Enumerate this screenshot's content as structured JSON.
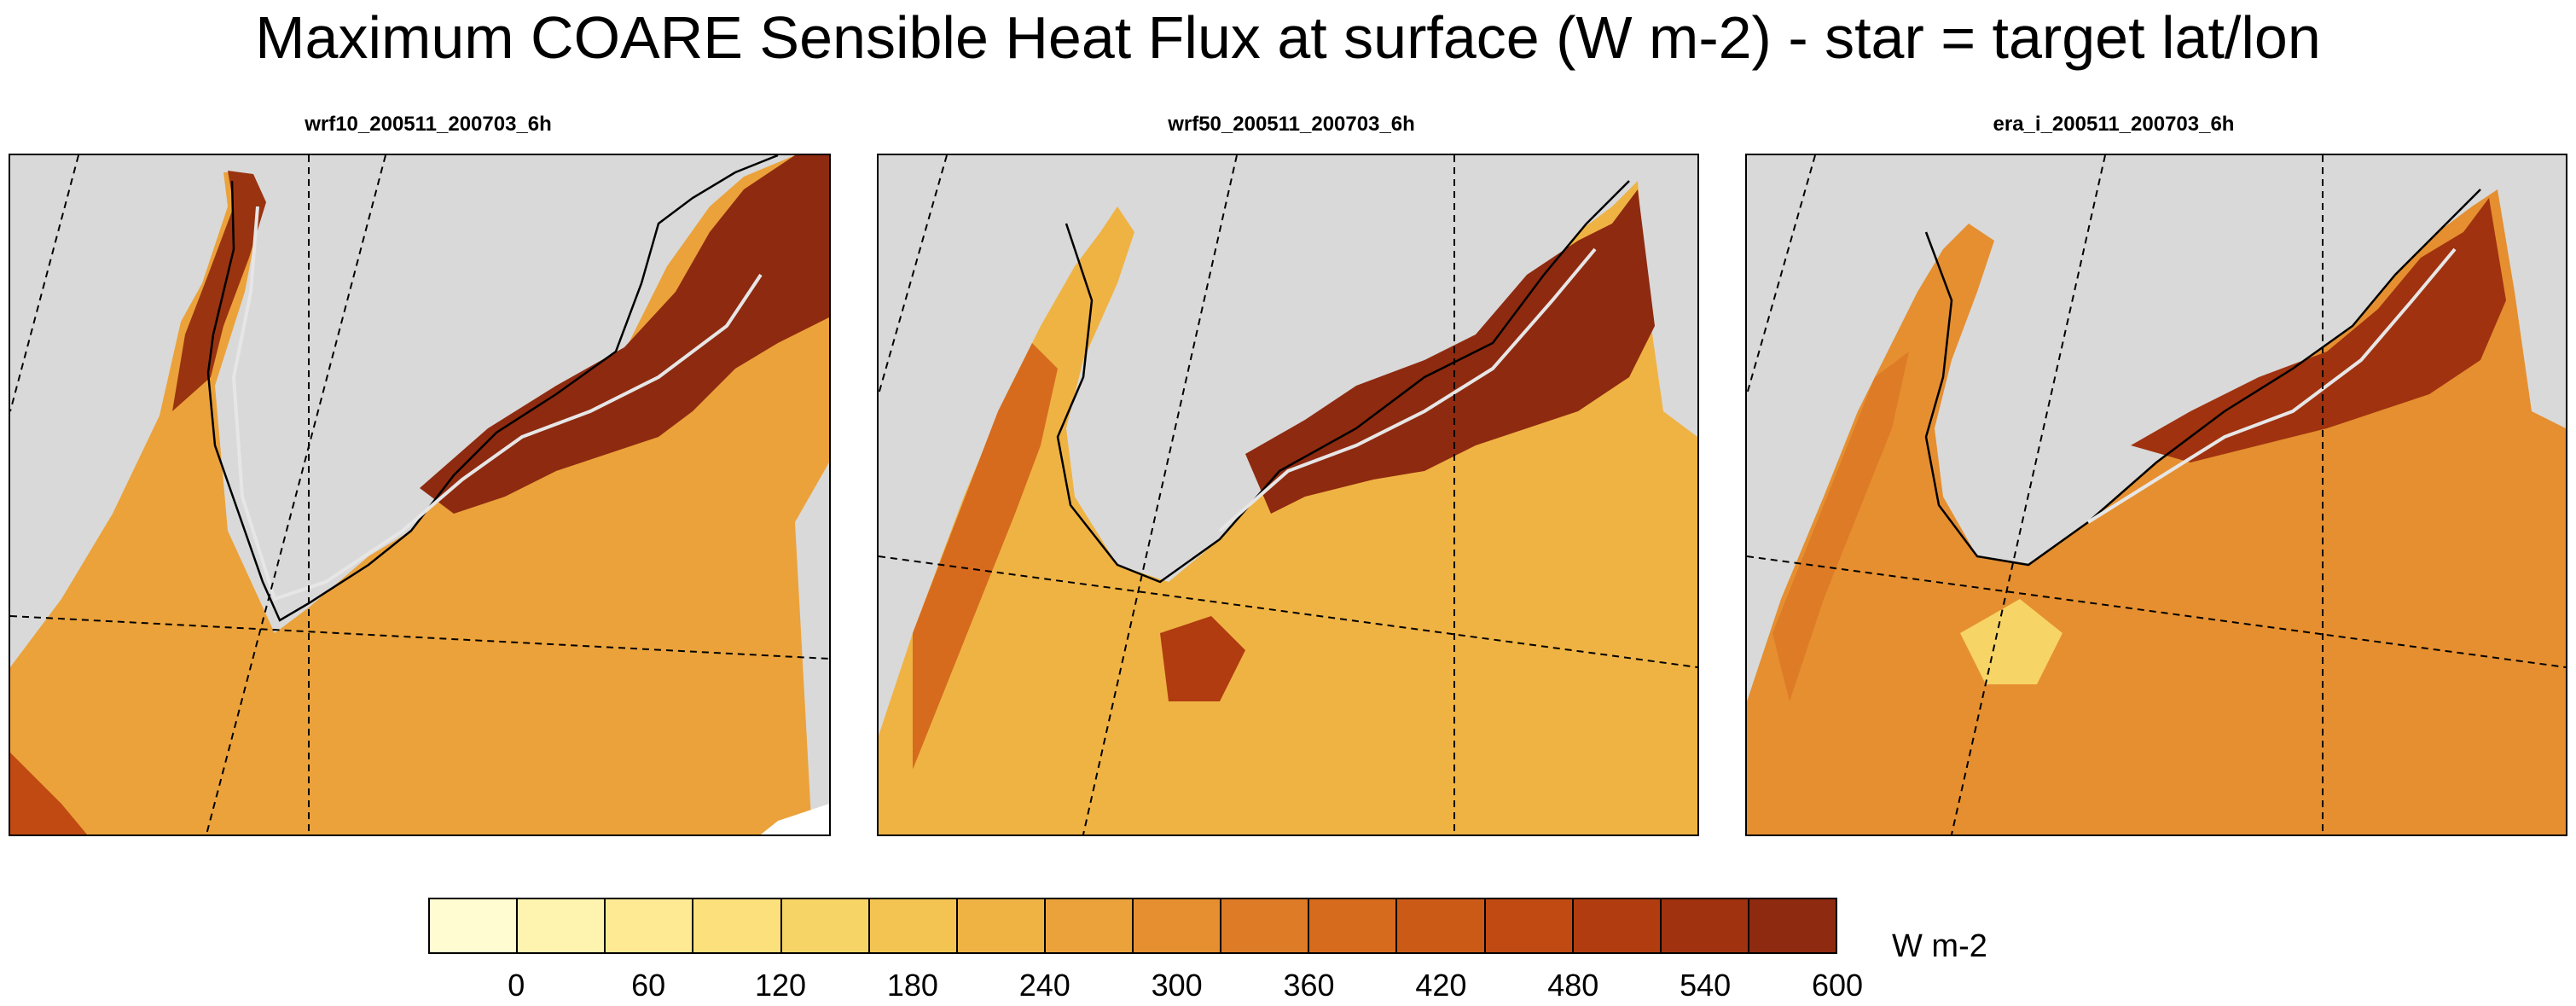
{
  "title": "Maximum COARE Sensible Heat Flux at surface (W m-2) - star = target lat/lon",
  "panels": [
    {
      "label": "wrf10_200511_200703_6h"
    },
    {
      "label": "wrf50_200511_200703_6h"
    },
    {
      "label": "era_i_200511_200703_6h"
    }
  ],
  "colorbar": {
    "units": "W m-2",
    "tick_labels": [
      "0",
      "60",
      "120",
      "180",
      "240",
      "300",
      "360",
      "420",
      "480",
      "540",
      "600"
    ],
    "colors": [
      "#fffcd2",
      "#fff3b0",
      "#ffea94",
      "#fbe07c",
      "#f7d466",
      "#f3c452",
      "#efb344",
      "#eba23a",
      "#e58f30",
      "#de7b26",
      "#d66b1e",
      "#cc5a17",
      "#c04a12",
      "#b03c10",
      "#a0320f",
      "#8e2a10"
    ]
  },
  "colors": {
    "land": "#d9d9d9",
    "ocean_base": "#eba23a",
    "high_flux": "#8e2a10",
    "ice_edge": "#e6e6e6"
  }
}
